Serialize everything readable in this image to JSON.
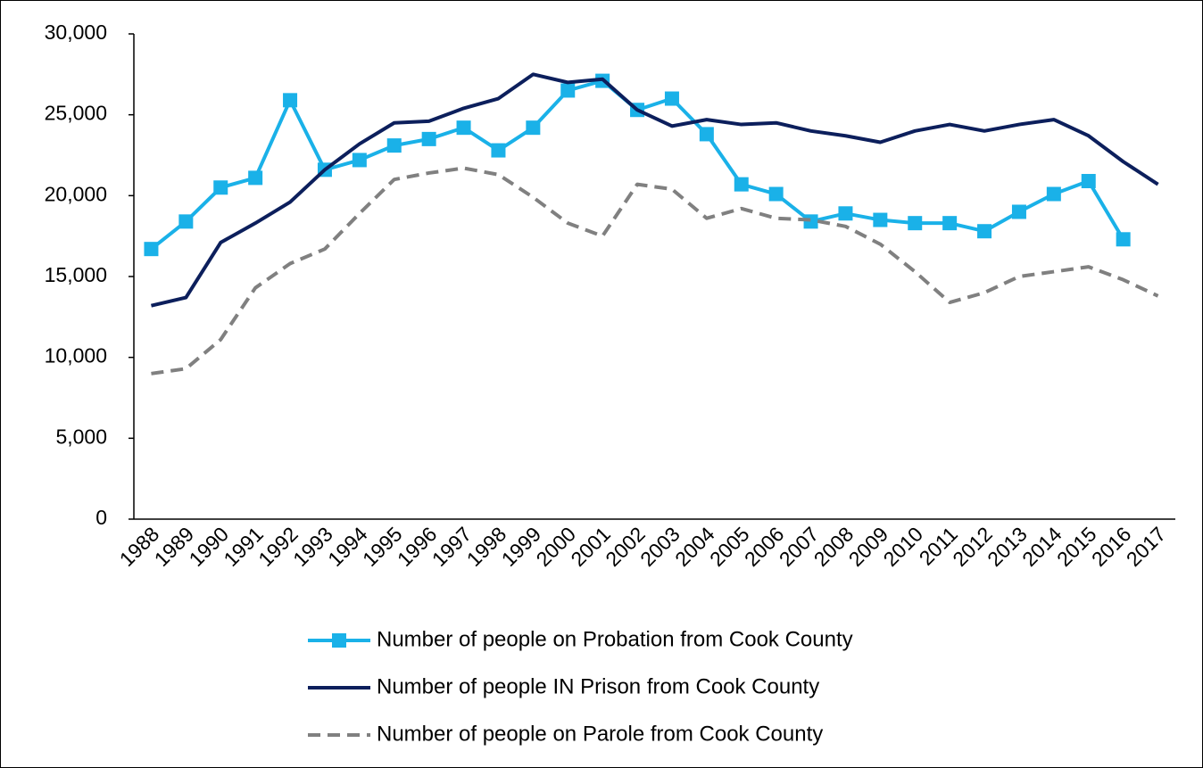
{
  "chart_data": {
    "type": "line",
    "categories": [
      "1988",
      "1989",
      "1990",
      "1991",
      "1992",
      "1993",
      "1994",
      "1995",
      "1996",
      "1997",
      "1998",
      "1999",
      "2000",
      "2001",
      "2002",
      "2003",
      "2004",
      "2005",
      "2006",
      "2007",
      "2008",
      "2009",
      "2010",
      "2011",
      "2012",
      "2013",
      "2014",
      "2015",
      "2016",
      "2017"
    ],
    "series": [
      {
        "name": "Number of people on Probation from Cook County",
        "color": "#1ab1e8",
        "marker": "square",
        "line_style": "solid",
        "values": [
          16700,
          18400,
          20500,
          21100,
          25900,
          21600,
          22200,
          23100,
          23500,
          24200,
          22800,
          24200,
          26500,
          27100,
          25300,
          26000,
          23800,
          20700,
          20100,
          18400,
          18900,
          18500,
          18300,
          18300,
          17800,
          19000,
          20100,
          20900,
          17300,
          null
        ]
      },
      {
        "name": "Number of people IN Prison from Cook County",
        "color": "#0c1f5c",
        "marker": "none",
        "line_style": "solid",
        "values": [
          13200,
          13700,
          17100,
          18300,
          19600,
          21600,
          23200,
          24500,
          24600,
          25400,
          26000,
          27500,
          27000,
          27200,
          25300,
          24300,
          24700,
          24400,
          24500,
          24000,
          23700,
          23300,
          24000,
          24400,
          24000,
          24400,
          24700,
          23700,
          22100,
          20700
        ]
      },
      {
        "name": "Number of people on Parole from Cook County",
        "color": "#808080",
        "marker": "none",
        "line_style": "dashed",
        "values": [
          9000,
          9300,
          11100,
          14300,
          15800,
          16700,
          18900,
          21000,
          21400,
          21700,
          21300,
          19900,
          18300,
          17500,
          20700,
          20400,
          18600,
          19200,
          18600,
          18500,
          18100,
          17000,
          15300,
          13400,
          14000,
          15000,
          15300,
          15600,
          14800,
          13800
        ]
      }
    ],
    "ylim": [
      0,
      30000
    ],
    "yticks": [
      0,
      {
        "value": 5000,
        "label": "5,000"
      },
      {
        "value": 10000,
        "label": "10,000"
      },
      {
        "value": 15000,
        "label": "15,000"
      },
      {
        "value": 20000,
        "label": "20,000"
      },
      {
        "value": 25000,
        "label": "25,000"
      },
      {
        "value": 30000,
        "label": "30,000"
      }
    ],
    "grid": false,
    "legend": "bottom"
  }
}
